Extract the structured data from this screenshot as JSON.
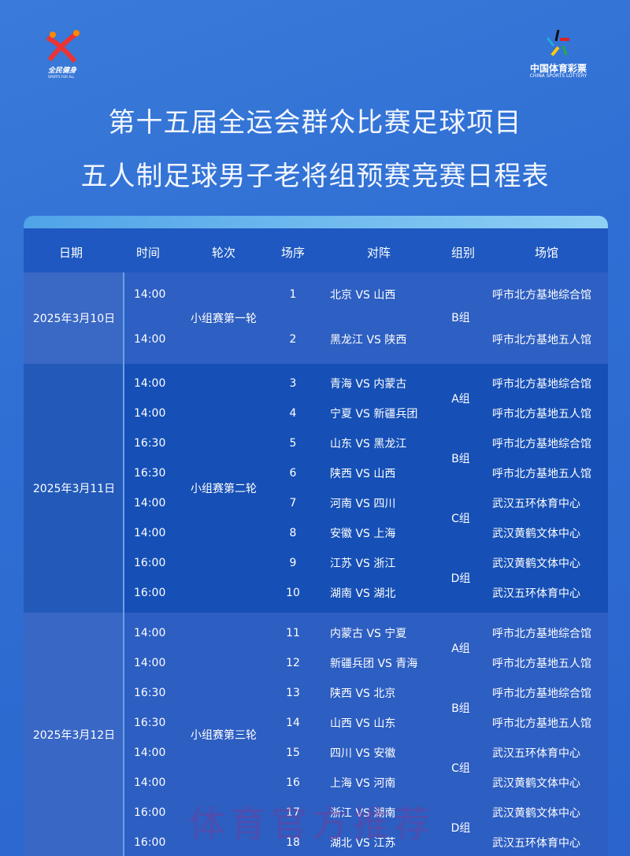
{
  "logos": {
    "left_text": "全民健身",
    "left_en": "SPORTS FOR ALL",
    "right_cn": "中国体育彩票",
    "right_en": "CHINA SPORTS LOTTERY"
  },
  "title_line1": "第十五届全运会群众比赛足球项目",
  "title_line2": "五人制足球男子老将组预赛竞赛日程表",
  "headers": [
    "日期",
    "时间",
    "轮次",
    "场序",
    "对阵",
    "组别",
    "场馆"
  ],
  "days": [
    {
      "date": "2025年3月10日",
      "round": "小组赛第一轮",
      "groups": [
        {
          "name": "B组",
          "from": 0,
          "to": 1
        }
      ],
      "matches": [
        [
          "14:00",
          "1",
          "北京 VS 山西",
          "呼市北方基地综合馆"
        ],
        [
          "14:00",
          "2",
          "黑龙江 VS 陕西",
          "呼市北方基地五人馆"
        ]
      ]
    },
    {
      "date": "2025年3月11日",
      "round": "小组赛第二轮",
      "groups": [
        {
          "name": "A组",
          "from": 0,
          "to": 1
        },
        {
          "name": "B组",
          "from": 2,
          "to": 3
        },
        {
          "name": "C组",
          "from": 4,
          "to": 5
        },
        {
          "name": "D组",
          "from": 6,
          "to": 7
        }
      ],
      "matches": [
        [
          "14:00",
          "3",
          "青海 VS 内蒙古",
          "呼市北方基地综合馆"
        ],
        [
          "14:00",
          "4",
          "宁夏 VS 新疆兵团",
          "呼市北方基地五人馆"
        ],
        [
          "16:30",
          "5",
          "山东 VS 黑龙江",
          "呼市北方基地综合馆"
        ],
        [
          "16:30",
          "6",
          "陕西 VS 山西",
          "呼市北方基地五人馆"
        ],
        [
          "14:00",
          "7",
          "河南 VS 四川",
          "武汉五环体育中心"
        ],
        [
          "14:00",
          "8",
          "安徽 VS 上海",
          "武汉黄鹤文体中心"
        ],
        [
          "16:00",
          "9",
          "江苏 VS 浙江",
          "武汉黄鹤文体中心"
        ],
        [
          "16:00",
          "10",
          "湖南 VS 湖北",
          "武汉五环体育中心"
        ]
      ]
    },
    {
      "date": "2025年3月12日",
      "round": "小组赛第三轮",
      "groups": [
        {
          "name": "A组",
          "from": 0,
          "to": 1
        },
        {
          "name": "B组",
          "from": 2,
          "to": 3
        },
        {
          "name": "C组",
          "from": 4,
          "to": 5
        },
        {
          "name": "D组",
          "from": 6,
          "to": 7
        }
      ],
      "matches": [
        [
          "14:00",
          "11",
          "内蒙古 VS 宁夏",
          "呼市北方基地综合馆"
        ],
        [
          "14:00",
          "12",
          "新疆兵团 VS 青海",
          "呼市北方基地五人馆"
        ],
        [
          "16:30",
          "13",
          "陕西 VS 北京",
          "呼市北方基地综合馆"
        ],
        [
          "16:30",
          "14",
          "山西 VS 山东",
          "呼市北方基地五人馆"
        ],
        [
          "14:00",
          "15",
          "四川 VS 安徽",
          "武汉五环体育中心"
        ],
        [
          "14:00",
          "16",
          "上海 VS 河南",
          "武汉黄鹤文体中心"
        ],
        [
          "16:00",
          "17",
          "浙江 VS 湖南",
          "武汉黄鹤文体中心"
        ],
        [
          "16:00",
          "18",
          "湖北 VS 江苏",
          "武汉五环体育中心"
        ]
      ]
    }
  ],
  "watermark": "体育官方推荐"
}
